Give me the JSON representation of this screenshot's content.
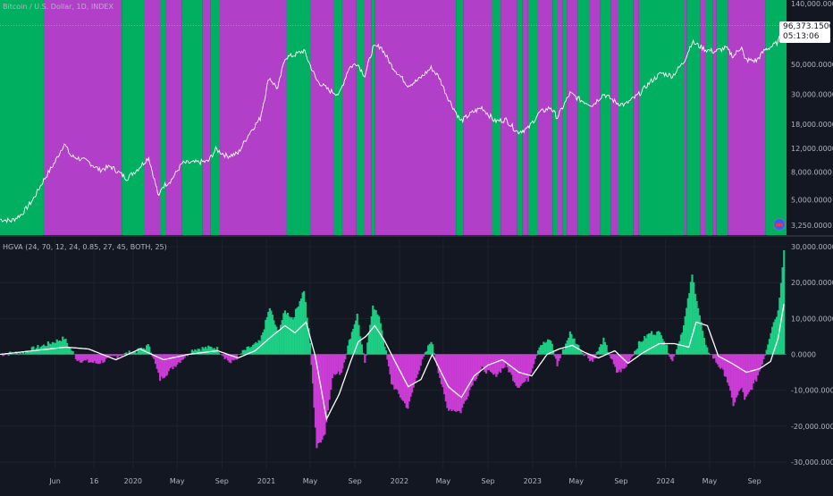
{
  "top_pane": {
    "label": "Bitcoin / U.S. Dollar, 1D, INDEX",
    "last_price": "96,373.1500",
    "countdown": "05:13:06"
  },
  "bottom_pane": {
    "label": "HGVA (24, 70, 12, 24, 0.85, 27, 45, BOTH, 25)"
  },
  "colors": {
    "background": "#131722",
    "green": "#00b060",
    "magenta": "#b23fc8",
    "histogram_green": "#1ed98a",
    "histogram_magenta": "#d63ee0",
    "price_line": "#ffffff",
    "axis_text": "#b2b5be",
    "grid": "#1e222d"
  },
  "chart_data": [
    {
      "type": "line",
      "title": "Bitcoin / U.S. Dollar, 1D, INDEX",
      "scale": "log",
      "y_ticks": [
        "140,000.0000",
        "80,000.0000",
        "50,000.0000",
        "30,000.0000",
        "18,000.0000",
        "12,000.0000",
        "8,000.0000",
        "5,000.0000",
        "3,250.0000"
      ],
      "y_tick_values": [
        140000,
        80000,
        50000,
        30000,
        18000,
        12000,
        8000,
        5000,
        3250
      ],
      "x": [
        "2019-01-01",
        "2019-02-01",
        "2019-03-01",
        "2019-04-01",
        "2019-05-01",
        "2019-06-01",
        "2019-06-26",
        "2019-07-15",
        "2019-08-01",
        "2019-09-01",
        "2019-10-01",
        "2019-11-01",
        "2019-12-15",
        "2020-01-15",
        "2020-02-13",
        "2020-03-12",
        "2020-03-20",
        "2020-04-15",
        "2020-05-15",
        "2020-06-15",
        "2020-07-25",
        "2020-08-15",
        "2020-09-15",
        "2020-10-15",
        "2020-11-15",
        "2020-12-15",
        "2021-01-08",
        "2021-02-01",
        "2021-02-21",
        "2021-03-15",
        "2021-04-14",
        "2021-05-19",
        "2021-06-22",
        "2021-07-20",
        "2021-08-15",
        "2021-09-07",
        "2021-09-28",
        "2021-10-20",
        "2021-11-10",
        "2021-12-10",
        "2022-01-24",
        "2022-02-20",
        "2022-03-29",
        "2022-04-20",
        "2022-05-12",
        "2022-06-18",
        "2022-07-20",
        "2022-08-15",
        "2022-09-20",
        "2022-10-20",
        "2022-11-21",
        "2022-12-20",
        "2023-01-20",
        "2023-02-20",
        "2023-03-10",
        "2023-04-14",
        "2023-05-15",
        "2023-06-15",
        "2023-07-15",
        "2023-08-20",
        "2023-09-11",
        "2023-10-20",
        "2023-11-20",
        "2023-12-20",
        "2024-01-20",
        "2024-02-20",
        "2024-03-14",
        "2024-04-20",
        "2024-05-15",
        "2024-06-15",
        "2024-07-05",
        "2024-07-28",
        "2024-08-05",
        "2024-09-06",
        "2024-09-30",
        "2024-10-20",
        "2024-11-05",
        "2024-11-21"
      ],
      "y": [
        3600,
        3500,
        3900,
        5000,
        7000,
        9500,
        13000,
        10500,
        10200,
        9500,
        8300,
        8800,
        7200,
        8500,
        10300,
        5200,
        6200,
        7000,
        9300,
        9400,
        9600,
        11800,
        10500,
        11000,
        15500,
        20000,
        40000,
        33000,
        56000,
        58000,
        63000,
        38000,
        32000,
        30000,
        47000,
        51000,
        41000,
        66000,
        68000,
        49000,
        35000,
        38000,
        47000,
        40000,
        29000,
        19000,
        22000,
        24000,
        19000,
        19500,
        15800,
        16800,
        22000,
        24000,
        20200,
        30500,
        27000,
        25000,
        30200,
        26000,
        25100,
        30000,
        37000,
        43000,
        41000,
        52000,
        73000,
        64000,
        62000,
        66000,
        57000,
        68000,
        54000,
        53000,
        64000,
        68000,
        73000,
        96373
      ]
    },
    {
      "type": "area",
      "title": "HGVA (24, 70, 12, 24, 0.85, 27, 45, BOTH, 25)",
      "y_ticks": [
        "30,000.0000",
        "20,000.0000",
        "10,000.0000",
        "0.0000",
        "-10,000.0000",
        "-20,000.0000",
        "-30,000.0000"
      ],
      "y_tick_values": [
        30000,
        20000,
        10000,
        0,
        -10000,
        -20000,
        -30000
      ],
      "ylim": [
        -32000,
        32000
      ],
      "x_tick_labels": [
        "Jun",
        "16",
        "2020",
        "May",
        "Sep",
        "2021",
        "May",
        "Sep",
        "2022",
        "May",
        "Sep",
        "2023",
        "May",
        "Sep",
        "2024",
        "May",
        "Sep"
      ],
      "x_tick_dates": [
        "2019-06-01",
        "2019-09-16",
        "2020-01-01",
        "2020-05-01",
        "2020-09-01",
        "2021-01-01",
        "2021-05-01",
        "2021-09-01",
        "2022-01-01",
        "2022-05-01",
        "2022-09-01",
        "2023-01-01",
        "2023-05-01",
        "2023-09-01",
        "2024-01-01",
        "2024-05-01",
        "2024-09-01"
      ],
      "series": [
        {
          "role": "histogram",
          "x": [
            "2019-01-01",
            "2019-03-01",
            "2019-05-01",
            "2019-06-26",
            "2019-08-01",
            "2019-09-25",
            "2019-11-15",
            "2020-01-15",
            "2020-02-15",
            "2020-03-15",
            "2020-05-01",
            "2020-06-15",
            "2020-08-15",
            "2020-09-25",
            "2020-11-01",
            "2020-12-15",
            "2021-01-10",
            "2021-02-01",
            "2021-02-21",
            "2021-03-15",
            "2021-04-14",
            "2021-05-01",
            "2021-05-19",
            "2021-06-10",
            "2021-07-01",
            "2021-07-25",
            "2021-08-20",
            "2021-09-07",
            "2021-09-28",
            "2021-10-20",
            "2021-11-10",
            "2021-12-10",
            "2022-01-24",
            "2022-02-20",
            "2022-03-29",
            "2022-05-12",
            "2022-06-18",
            "2022-07-20",
            "2022-08-15",
            "2022-09-20",
            "2022-10-20",
            "2022-11-21",
            "2022-12-20",
            "2023-01-20",
            "2023-02-20",
            "2023-03-10",
            "2023-04-14",
            "2023-05-15",
            "2023-06-15",
            "2023-07-15",
            "2023-08-20",
            "2023-09-11",
            "2023-10-20",
            "2023-11-20",
            "2023-12-20",
            "2024-01-20",
            "2024-02-20",
            "2024-03-14",
            "2024-04-20",
            "2024-05-15",
            "2024-06-15",
            "2024-07-05",
            "2024-07-28",
            "2024-08-05",
            "2024-09-06",
            "2024-09-30",
            "2024-10-20",
            "2024-11-05",
            "2024-11-21"
          ],
          "values": [
            0,
            500,
            2500,
            4500,
            -1500,
            -2500,
            -500,
            1000,
            2500,
            -7000,
            -2500,
            1500,
            2000,
            -2500,
            1000,
            3500,
            13000,
            6000,
            12000,
            10000,
            18000,
            3000,
            -26000,
            -22000,
            -6000,
            -5000,
            5000,
            11000,
            -3000,
            14000,
            9000,
            -8000,
            -15000,
            -5000,
            4000,
            -15000,
            -16000,
            -8000,
            -4000,
            -6000,
            -3000,
            -9000,
            -7000,
            2500,
            4000,
            -3000,
            6000,
            1000,
            -2000,
            4000,
            -5000,
            -4000,
            3000,
            6000,
            6000,
            -2000,
            8000,
            22000,
            2000,
            -1500,
            -6000,
            -14000,
            -9000,
            -13000,
            -7000,
            0,
            8000,
            12000,
            29000
          ]
        },
        {
          "role": "smoothed_line",
          "x": [
            "2019-01-01",
            "2019-04-01",
            "2019-07-01",
            "2019-09-01",
            "2019-11-15",
            "2020-01-20",
            "2020-03-25",
            "2020-06-01",
            "2020-08-20",
            "2020-10-15",
            "2020-12-01",
            "2021-01-15",
            "2021-02-21",
            "2021-03-20",
            "2021-04-20",
            "2021-05-15",
            "2021-06-15",
            "2021-07-20",
            "2021-08-20",
            "2021-09-10",
            "2021-10-01",
            "2021-10-25",
            "2021-11-20",
            "2021-12-20",
            "2022-01-25",
            "2022-03-01",
            "2022-04-01",
            "2022-05-15",
            "2022-06-20",
            "2022-07-25",
            "2022-09-01",
            "2022-10-10",
            "2022-11-25",
            "2022-12-30",
            "2023-02-10",
            "2023-03-15",
            "2023-04-20",
            "2023-05-25",
            "2023-07-01",
            "2023-08-15",
            "2023-09-20",
            "2023-11-01",
            "2023-12-15",
            "2024-01-25",
            "2024-03-05",
            "2024-03-25",
            "2024-04-25",
            "2024-05-25",
            "2024-07-01",
            "2024-08-10",
            "2024-09-15",
            "2024-10-15",
            "2024-11-05",
            "2024-11-21"
          ],
          "values": [
            0,
            1000,
            2000,
            1500,
            -1500,
            1500,
            -1500,
            0,
            1000,
            -1000,
            1000,
            5000,
            8000,
            6000,
            9000,
            -500,
            -18000,
            -11000,
            -2000,
            3500,
            5000,
            8000,
            4000,
            -2000,
            -9000,
            -7000,
            0,
            -9000,
            -12000,
            -6000,
            -3000,
            -1500,
            -5000,
            -6000,
            0,
            1500,
            2500,
            500,
            -1000,
            1000,
            -2500,
            500,
            3000,
            3000,
            2000,
            9000,
            8000,
            -500,
            -2500,
            -5000,
            -4000,
            -2000,
            4500,
            14000
          ]
        }
      ]
    }
  ],
  "bands": {
    "start_colors": "green",
    "change_dates": [
      "2019-05-01",
      "2019-12-01",
      "2020-02-01",
      "2020-03-15",
      "2020-04-01",
      "2020-05-15",
      "2020-07-10",
      "2020-08-01",
      "2020-08-25",
      "2021-02-25",
      "2021-05-01",
      "2021-07-05",
      "2021-07-28",
      "2021-09-05",
      "2021-09-25",
      "2021-10-15",
      "2021-10-25",
      "2022-06-05",
      "2022-06-25",
      "2022-09-12",
      "2022-10-06",
      "2022-11-20",
      "2022-12-05",
      "2022-12-20",
      "2023-01-15",
      "2023-02-25",
      "2023-03-10",
      "2023-03-25",
      "2023-04-05",
      "2023-05-05",
      "2023-06-05",
      "2023-07-05",
      "2023-08-05",
      "2023-08-25",
      "2023-10-05",
      "2023-10-20",
      "2024-02-20",
      "2024-02-28",
      "2024-04-05",
      "2024-04-20",
      "2024-05-10",
      "2024-05-20",
      "2024-06-20",
      "2024-10-01"
    ]
  }
}
